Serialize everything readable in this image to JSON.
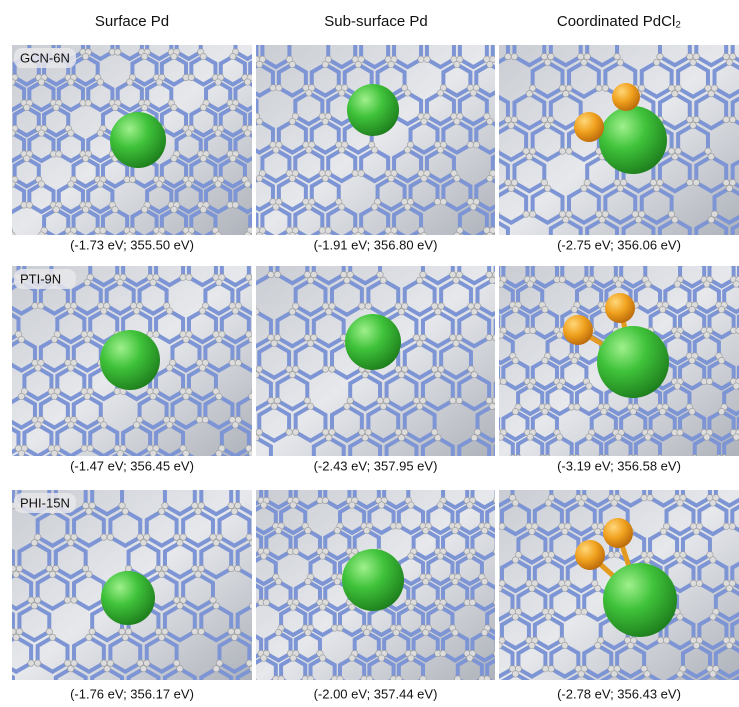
{
  "header": {
    "columns": [
      "Surface Pd",
      "Sub-surface Pd",
      "Coordinated PdCl₂"
    ]
  },
  "rows": [
    {
      "label": "GCN-6N",
      "captions": [
        "(-1.73 eV; 355.50 eV)",
        "(-1.91 eV; 356.80 eV)",
        "(-2.75 eV; 356.06 eV)"
      ]
    },
    {
      "label": "PTI-9N",
      "captions": [
        "(-1.47 eV; 356.45 eV)",
        "(-2.43 eV; 357.95 eV)",
        "(-3.19 eV; 356.58 eV)"
      ]
    },
    {
      "label": "PHI-15N",
      "captions": [
        "(-1.76 eV; 356.17 eV)",
        "(-2.00 eV; 357.44 eV)",
        "(-2.78 eV; 356.43 eV)"
      ]
    }
  ]
}
